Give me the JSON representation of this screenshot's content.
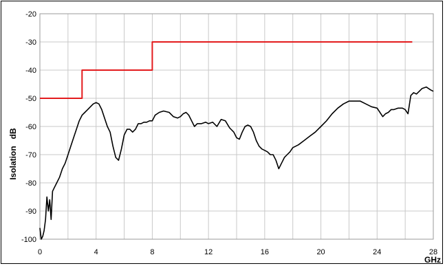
{
  "chart_data": {
    "type": "line",
    "title": "",
    "xlabel": "GHz",
    "ylabel": "Isolation   dB",
    "xlim": [
      0,
      28
    ],
    "ylim": [
      -100,
      -20
    ],
    "xticks": [
      0,
      4,
      8,
      12,
      16,
      20,
      24,
      28
    ],
    "yticks": [
      -20,
      -30,
      -40,
      -50,
      -60,
      -70,
      -80,
      -90,
      -100
    ],
    "grid": true,
    "legend": "none",
    "series": [
      {
        "color": "#e31a1c",
        "style": "step",
        "x": [
          0,
          3,
          3,
          8,
          8,
          26.5
        ],
        "y": [
          -50,
          -50,
          -40,
          -40,
          -30,
          -30
        ]
      },
      {
        "color": "#000000",
        "style": "line",
        "x": [
          0,
          0.1,
          0.2,
          0.3,
          0.4,
          0.5,
          0.6,
          0.7,
          0.8,
          0.9,
          1.0,
          1.2,
          1.4,
          1.6,
          1.8,
          2.0,
          2.2,
          2.4,
          2.6,
          2.8,
          3.0,
          3.2,
          3.4,
          3.6,
          3.8,
          4.0,
          4.2,
          4.4,
          4.6,
          4.8,
          5.0,
          5.2,
          5.4,
          5.6,
          5.8,
          6.0,
          6.2,
          6.4,
          6.6,
          6.8,
          7.0,
          7.2,
          7.4,
          7.6,
          7.8,
          8.0,
          8.2,
          8.5,
          8.8,
          9.2,
          9.5,
          9.8,
          10.0,
          10.2,
          10.4,
          10.6,
          10.8,
          11.0,
          11.2,
          11.5,
          11.8,
          12.0,
          12.3,
          12.6,
          12.9,
          13.2,
          13.5,
          13.8,
          14.0,
          14.2,
          14.4,
          14.6,
          14.8,
          15.0,
          15.2,
          15.4,
          15.6,
          15.8,
          16.0,
          16.2,
          16.4,
          16.6,
          16.8,
          17.0,
          17.2,
          17.4,
          17.6,
          17.8,
          18.0,
          18.4,
          18.8,
          19.2,
          19.6,
          20.0,
          20.4,
          20.8,
          21.2,
          21.6,
          22.0,
          22.4,
          22.8,
          23.2,
          23.6,
          24.0,
          24.2,
          24.4,
          24.6,
          24.8,
          25.0,
          25.2,
          25.5,
          25.8,
          26.0,
          26.2,
          26.4,
          26.6,
          26.8,
          27.0,
          27.2,
          27.5,
          27.8,
          28.0
        ],
        "y": [
          -96,
          -100,
          -99,
          -97,
          -93,
          -85,
          -90,
          -86,
          -93,
          -83,
          -82,
          -80,
          -78,
          -75,
          -73,
          -70,
          -67,
          -64,
          -61,
          -58,
          -56,
          -55,
          -54,
          -53,
          -52,
          -51.5,
          -52,
          -54,
          -57,
          -60,
          -62,
          -67,
          -71,
          -72,
          -68,
          -63,
          -61,
          -61,
          -62,
          -61,
          -59,
          -59,
          -58.5,
          -58.5,
          -58,
          -58,
          -56,
          -55,
          -54.5,
          -55,
          -56.5,
          -57,
          -56.5,
          -55.5,
          -55,
          -56,
          -58,
          -60,
          -59,
          -59,
          -58.5,
          -59,
          -58.5,
          -60,
          -57.5,
          -58,
          -60.5,
          -62,
          -64,
          -64.5,
          -62,
          -60,
          -59.5,
          -60,
          -62,
          -65,
          -67,
          -68,
          -68.5,
          -69,
          -70,
          -70,
          -72,
          -75,
          -73,
          -71,
          -70,
          -69,
          -67.5,
          -66.5,
          -65,
          -63.5,
          -62,
          -60,
          -58,
          -55.5,
          -53.5,
          -52,
          -51,
          -51,
          -51,
          -52,
          -53,
          -53.5,
          -55,
          -56.5,
          -55.5,
          -55,
          -54,
          -54,
          -53.5,
          -53.5,
          -54,
          -55.5,
          -49,
          -48,
          -48.5,
          -47.5,
          -46.5,
          -46,
          -47,
          -47.5
        ]
      }
    ]
  }
}
